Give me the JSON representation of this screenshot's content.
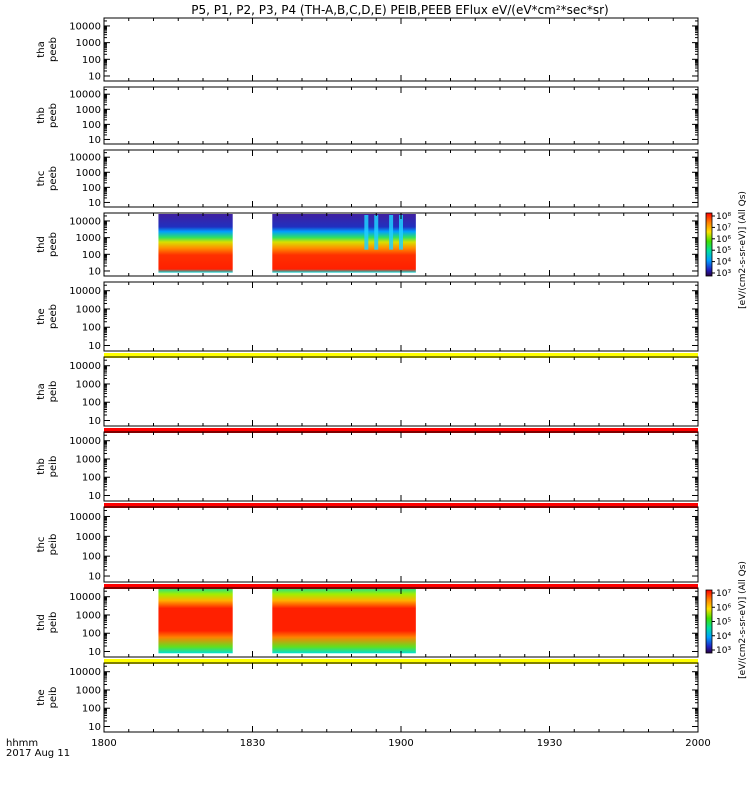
{
  "chart_data": {
    "type": "heatmap",
    "title": "P5, P1, P2, P3, P4 (TH-A,B,C,D,E) PEIB,PEEB EFlux eV/(eV*cm²*sec*sr)",
    "x_axis": {
      "label_line1": "hhmm",
      "label_line2": "2017 Aug 11",
      "range": [
        "18:00",
        "20:00"
      ],
      "ticks": [
        "1800",
        "1830",
        "1900",
        "1930",
        "2000"
      ]
    },
    "y_axis": {
      "scale": "log",
      "range": [
        5,
        30000
      ],
      "ticks": [
        "10",
        "100",
        "1000",
        "10000"
      ]
    },
    "panels": [
      {
        "probe": "tha",
        "product": "peeb",
        "label_line1": "tha",
        "label_line2": "peeb",
        "has_data": false,
        "bar_color": ""
      },
      {
        "probe": "thb",
        "product": "peeb",
        "label_line1": "thb",
        "label_line2": "peeb",
        "has_data": false,
        "bar_color": ""
      },
      {
        "probe": "thc",
        "product": "peeb",
        "label_line1": "thc",
        "label_line2": "peeb",
        "has_data": false,
        "bar_color": ""
      },
      {
        "probe": "thd",
        "product": "peeb",
        "label_line1": "thd",
        "label_line2": "peeb",
        "has_data": true,
        "bar_color": "",
        "data_intervals": [
          [
            "18:11",
            "18:26"
          ],
          [
            "18:34",
            "19:03"
          ]
        ]
      },
      {
        "probe": "the",
        "product": "peeb",
        "label_line1": "the",
        "label_line2": "peeb",
        "has_data": false,
        "bar_color": "#ffff00"
      },
      {
        "probe": "tha",
        "product": "peib",
        "label_line1": "tha",
        "label_line2": "peib",
        "has_data": false,
        "bar_color": "#ff0000"
      },
      {
        "probe": "thb",
        "product": "peib",
        "label_line1": "thb",
        "label_line2": "peib",
        "has_data": false,
        "bar_color": "#ff0000"
      },
      {
        "probe": "thc",
        "product": "peib",
        "label_line1": "thc",
        "label_line2": "peib",
        "has_data": false,
        "bar_color": "#ff0000"
      },
      {
        "probe": "thd",
        "product": "peib",
        "label_line1": "thd",
        "label_line2": "peib",
        "has_data": true,
        "bar_color": "#ffff00",
        "data_intervals": [
          [
            "18:11",
            "18:26"
          ],
          [
            "18:34",
            "19:03"
          ]
        ]
      },
      {
        "probe": "the",
        "product": "peib",
        "label_line1": "the",
        "label_line2": "peib",
        "has_data": false,
        "bar_color": ""
      }
    ],
    "colorbars": [
      {
        "for": "peeb",
        "label": "[eV/(cm2-s-sr-eV)] (All Qs)",
        "ticks": [
          "10⁸",
          "10⁷",
          "10⁶",
          "10⁵",
          "10⁴",
          "10³"
        ],
        "scale": "log"
      },
      {
        "for": "peib",
        "label": "[eV/(cm2-s-sr-eV)] (All Qs)",
        "ticks": [
          "10⁷",
          "10⁶",
          "10⁵",
          "10⁴",
          "10³"
        ],
        "scale": "log"
      }
    ]
  }
}
